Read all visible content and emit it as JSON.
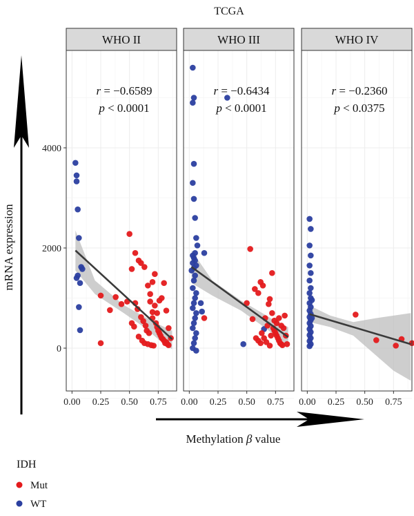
{
  "chart_data": {
    "type": "scatter",
    "title": "TCGA",
    "xlabel": "Methylation β value",
    "ylabel": "mRNA expression",
    "x_ticks": [
      "0.00",
      "0.25",
      "0.50",
      "0.75"
    ],
    "y_ticks": [
      "0",
      "2000",
      "4000"
    ],
    "ylim": [
      -900,
      6000
    ],
    "xlim": [
      -0.05,
      0.91
    ],
    "grid": true,
    "legend": {
      "title": "IDH",
      "placement": "bottom-left",
      "entries": [
        {
          "label": "Mut",
          "color": "#e41a1c"
        },
        {
          "label": "WT",
          "color": "#2b3fa0"
        }
      ]
    },
    "colors": {
      "Mut": "#e41a1c",
      "WT": "#2b3fa0",
      "fit_line": "#3a3a3a",
      "ci_band": "#bdbdbd",
      "strip_bg": "#d9d9d9"
    },
    "panels": [
      {
        "label": "WHO II",
        "stat_r_prefix": "r",
        "stat_r_value": " = −0.6589",
        "stat_p_prefix": "p",
        "stat_p_value": " < 0.0001",
        "fit": {
          "x": [
            0.03,
            0.87
          ],
          "y": [
            1950,
            180
          ]
        },
        "ci": [
          [
            0.03,
            2350,
            1550
          ],
          [
            0.2,
            1350,
            1080
          ],
          [
            0.45,
            860,
            700
          ],
          [
            0.62,
            640,
            430
          ],
          [
            0.75,
            480,
            180
          ],
          [
            0.87,
            350,
            -20
          ]
        ],
        "points": {
          "WT": [
            [
              0.03,
              3700
            ],
            [
              0.04,
              3450
            ],
            [
              0.04,
              3330
            ],
            [
              0.05,
              2770
            ],
            [
              0.06,
              2200
            ],
            [
              0.05,
              1450
            ],
            [
              0.04,
              1400
            ],
            [
              0.07,
              1300
            ],
            [
              0.08,
              1620
            ],
            [
              0.09,
              1580
            ],
            [
              0.06,
              820
            ],
            [
              0.07,
              360
            ]
          ],
          "Mut": [
            [
              0.25,
              100
            ],
            [
              0.25,
              1050
            ],
            [
              0.33,
              760
            ],
            [
              0.38,
              1020
            ],
            [
              0.43,
              880
            ],
            [
              0.48,
              930
            ],
            [
              0.5,
              2280
            ],
            [
              0.52,
              1580
            ],
            [
              0.55,
              1900
            ],
            [
              0.58,
              1750
            ],
            [
              0.6,
              1700
            ],
            [
              0.63,
              1620
            ],
            [
              0.66,
              1250
            ],
            [
              0.68,
              1080
            ],
            [
              0.7,
              1320
            ],
            [
              0.72,
              1480
            ],
            [
              0.55,
              900
            ],
            [
              0.57,
              780
            ],
            [
              0.6,
              620
            ],
            [
              0.62,
              540
            ],
            [
              0.64,
              450
            ],
            [
              0.65,
              350
            ],
            [
              0.67,
              300
            ],
            [
              0.7,
              600
            ],
            [
              0.72,
              850
            ],
            [
              0.73,
              500
            ],
            [
              0.74,
              420
            ],
            [
              0.75,
              350
            ],
            [
              0.76,
              300
            ],
            [
              0.77,
              250
            ],
            [
              0.78,
              200
            ],
            [
              0.79,
              180
            ],
            [
              0.8,
              150
            ],
            [
              0.81,
              100
            ],
            [
              0.82,
              120
            ],
            [
              0.83,
              80
            ],
            [
              0.84,
              60
            ],
            [
              0.86,
              200
            ],
            [
              0.52,
              500
            ],
            [
              0.54,
              430
            ],
            [
              0.58,
              230
            ],
            [
              0.61,
              150
            ],
            [
              0.63,
              100
            ],
            [
              0.66,
              80
            ],
            [
              0.69,
              60
            ],
            [
              0.71,
              50
            ],
            [
              0.74,
              700
            ],
            [
              0.76,
              950
            ],
            [
              0.78,
              1000
            ],
            [
              0.8,
              1300
            ],
            [
              0.82,
              750
            ],
            [
              0.84,
              400
            ],
            [
              0.68,
              930
            ],
            [
              0.7,
              720
            ]
          ]
        }
      },
      {
        "label": "WHO III",
        "stat_r_prefix": "r",
        "stat_r_value": " = −0.6434",
        "stat_p_prefix": "p",
        "stat_p_value": " < 0.0001",
        "fit": {
          "x": [
            0.02,
            0.86
          ],
          "y": [
            1620,
            220
          ]
        },
        "ci": [
          [
            0.02,
            1950,
            1300
          ],
          [
            0.2,
            1350,
            1050
          ],
          [
            0.45,
            950,
            750
          ],
          [
            0.62,
            720,
            470
          ],
          [
            0.75,
            540,
            250
          ],
          [
            0.86,
            420,
            50
          ]
        ],
        "points": {
          "WT": [
            [
              0.03,
              5600
            ],
            [
              0.04,
              5000
            ],
            [
              0.03,
              4900
            ],
            [
              0.33,
              5000
            ],
            [
              0.04,
              3680
            ],
            [
              0.03,
              3300
            ],
            [
              0.04,
              2980
            ],
            [
              0.05,
              2600
            ],
            [
              0.06,
              2200
            ],
            [
              0.07,
              2050
            ],
            [
              0.05,
              1900
            ],
            [
              0.04,
              1800
            ],
            [
              0.03,
              1700
            ],
            [
              0.06,
              1650
            ],
            [
              0.02,
              1550
            ],
            [
              0.05,
              1450
            ],
            [
              0.04,
              1350
            ],
            [
              0.03,
              1200
            ],
            [
              0.06,
              1100
            ],
            [
              0.05,
              1000
            ],
            [
              0.04,
              900
            ],
            [
              0.03,
              800
            ],
            [
              0.06,
              700
            ],
            [
              0.05,
              600
            ],
            [
              0.04,
              500
            ],
            [
              0.03,
              400
            ],
            [
              0.06,
              300
            ],
            [
              0.05,
              200
            ],
            [
              0.04,
              100
            ],
            [
              0.03,
              0
            ],
            [
              0.06,
              -50
            ],
            [
              0.05,
              1750
            ],
            [
              0.04,
              1600
            ],
            [
              0.03,
              1850
            ],
            [
              0.13,
              1900
            ],
            [
              0.1,
              900
            ],
            [
              0.11,
              730
            ],
            [
              0.47,
              80
            ],
            [
              0.65,
              380
            ]
          ],
          "Mut": [
            [
              0.13,
              600
            ],
            [
              0.53,
              1980
            ],
            [
              0.5,
              900
            ],
            [
              0.55,
              580
            ],
            [
              0.57,
              1180
            ],
            [
              0.6,
              1100
            ],
            [
              0.62,
              1320
            ],
            [
              0.64,
              1250
            ],
            [
              0.66,
              600
            ],
            [
              0.68,
              450
            ],
            [
              0.69,
              880
            ],
            [
              0.7,
              980
            ],
            [
              0.72,
              1500
            ],
            [
              0.73,
              400
            ],
            [
              0.74,
              350
            ],
            [
              0.75,
              300
            ],
            [
              0.76,
              250
            ],
            [
              0.77,
              200
            ],
            [
              0.78,
              150
            ],
            [
              0.79,
              100
            ],
            [
              0.8,
              80
            ],
            [
              0.81,
              60
            ],
            [
              0.82,
              400
            ],
            [
              0.83,
              650
            ],
            [
              0.84,
              250
            ],
            [
              0.58,
              200
            ],
            [
              0.6,
              150
            ],
            [
              0.62,
              100
            ],
            [
              0.63,
              300
            ],
            [
              0.65,
              200
            ],
            [
              0.67,
              120
            ],
            [
              0.7,
              50
            ],
            [
              0.72,
              700
            ],
            [
              0.74,
              550
            ],
            [
              0.76,
              500
            ],
            [
              0.78,
              600
            ],
            [
              0.8,
              450
            ],
            [
              0.85,
              80
            ],
            [
              0.71,
              250
            ]
          ]
        }
      },
      {
        "label": "WHO IV",
        "stat_r_prefix": "r",
        "stat_r_value": " = −0.2360",
        "stat_p_prefix": "p",
        "stat_p_value": " < 0.0375",
        "fit": {
          "x": [
            0.02,
            0.9
          ],
          "y": [
            680,
            80
          ]
        },
        "ci": [
          [
            0.02,
            850,
            520
          ],
          [
            0.2,
            650,
            420
          ],
          [
            0.4,
            520,
            250
          ],
          [
            0.6,
            600,
            -150
          ],
          [
            0.75,
            650,
            -450
          ],
          [
            0.9,
            700,
            -650
          ]
        ],
        "points": {
          "WT": [
            [
              0.02,
              2580
            ],
            [
              0.03,
              2380
            ],
            [
              0.02,
              2050
            ],
            [
              0.03,
              1850
            ],
            [
              0.02,
              1650
            ],
            [
              0.03,
              1500
            ],
            [
              0.02,
              1350
            ],
            [
              0.03,
              1200
            ],
            [
              0.02,
              1100
            ],
            [
              0.03,
              1000
            ],
            [
              0.02,
              900
            ],
            [
              0.03,
              820
            ],
            [
              0.02,
              750
            ],
            [
              0.03,
              680
            ],
            [
              0.02,
              620
            ],
            [
              0.03,
              560
            ],
            [
              0.02,
              500
            ],
            [
              0.03,
              440
            ],
            [
              0.02,
              380
            ],
            [
              0.03,
              320
            ],
            [
              0.02,
              260
            ],
            [
              0.03,
              200
            ],
            [
              0.02,
              140
            ],
            [
              0.03,
              80
            ],
            [
              0.02,
              40
            ],
            [
              0.04,
              960
            ],
            [
              0.04,
              600
            ]
          ],
          "Mut": [
            [
              0.42,
              670
            ],
            [
              0.6,
              160
            ],
            [
              0.77,
              50
            ],
            [
              0.82,
              180
            ],
            [
              0.91,
              100
            ]
          ]
        }
      }
    ]
  }
}
